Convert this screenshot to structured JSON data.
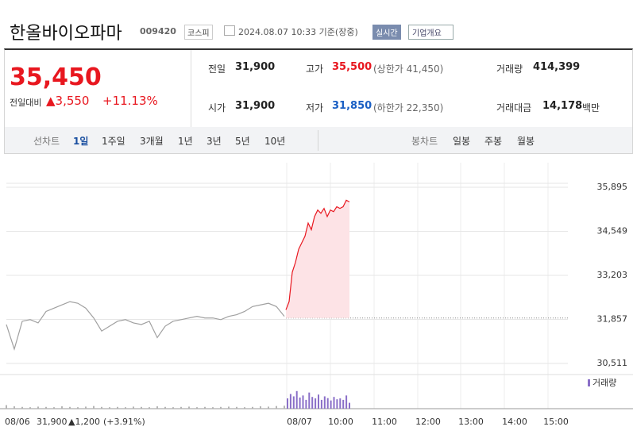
{
  "header": {
    "title": "한올바이오파마",
    "code": "009420",
    "market": "코스피",
    "timestamp": "2024.08.07 10:33 기준(장중)",
    "realtime": "실시간",
    "company": "기업개요"
  },
  "summary": {
    "price": "35,450",
    "change_label": "전일대비",
    "change": "▲3,550",
    "change_rate": "+11.13%",
    "stats": [
      {
        "label": "전일",
        "value": "31,900"
      },
      {
        "label": "고가",
        "value": "35,500",
        "note": "(상한가 41,450)"
      },
      {
        "label": "거래량",
        "value": "414,399"
      },
      {
        "label": "시가",
        "value": "31,900"
      },
      {
        "label": "저가",
        "value": "31,850",
        "note": "(하한가 22,350)"
      },
      {
        "label": "거래대금",
        "value": "14,178",
        "unit": "백만"
      }
    ]
  },
  "tabs": {
    "line_label": "선차트",
    "line": [
      "1일",
      "1주일",
      "3개월",
      "1년",
      "3년",
      "5년",
      "10년"
    ],
    "candle_label": "봉차트",
    "candle": [
      "일봉",
      "주봉",
      "월봉"
    ]
  },
  "chart_data": {
    "type": "line",
    "ylim": [
      30268,
      36648
    ],
    "yticks": [
      {
        "value": 35895,
        "label": "35,895"
      },
      {
        "value": 34549,
        "label": "34,549"
      },
      {
        "value": 33203,
        "label": "33,203"
      },
      {
        "value": 31857,
        "label": "31,857"
      },
      {
        "value": 30511,
        "label": "30,511"
      }
    ],
    "xticks": [
      "08/07",
      "10:00",
      "11:00",
      "12:00",
      "13:00",
      "14:00",
      "15:00"
    ],
    "baseline": 31900,
    "series": [
      {
        "color": "#a0a0a0",
        "values": [
          31700,
          30950,
          31800,
          31850,
          31750,
          32100,
          32200,
          32300,
          32400,
          32350,
          32200,
          31900,
          31500,
          31650,
          31800,
          31850,
          31750,
          31700,
          31800,
          31300,
          31650,
          31800,
          31850,
          31900,
          31950,
          31900,
          31900,
          31850,
          31950,
          32000,
          32100,
          32250,
          32300,
          32350,
          32250,
          31950
        ]
      },
      {
        "color": "#e8171f",
        "fill": "#fde3e6",
        "values": [
          32150,
          32400,
          33300,
          33600,
          34000,
          34200,
          34400,
          34800,
          34600,
          35000,
          35200,
          35100,
          35250,
          35000,
          35200,
          35150,
          35300,
          35250,
          35300,
          35500,
          35450
        ]
      }
    ],
    "volume": {
      "label": "거래량",
      "ylim": [
        0,
        100
      ],
      "prev_color": "#b5b5b5",
      "color": "#8a6fc8",
      "prev_values": [
        12,
        8,
        6,
        5,
        7,
        6,
        5,
        8,
        6,
        5,
        7,
        9,
        6,
        5,
        6,
        5,
        7,
        6,
        5,
        8,
        6,
        5,
        6,
        7,
        5,
        6,
        5,
        6,
        7,
        6,
        5,
        6,
        8,
        7,
        9,
        10
      ],
      "values": [
        35,
        50,
        42,
        60,
        38,
        45,
        30,
        55,
        40,
        35,
        48,
        30,
        42,
        36,
        28,
        40,
        32,
        35,
        30,
        45,
        20
      ]
    },
    "footer": {
      "date": "08/06",
      "price": "31,900",
      "change": "▲1,200",
      "rate": "(+3.91%)"
    }
  }
}
